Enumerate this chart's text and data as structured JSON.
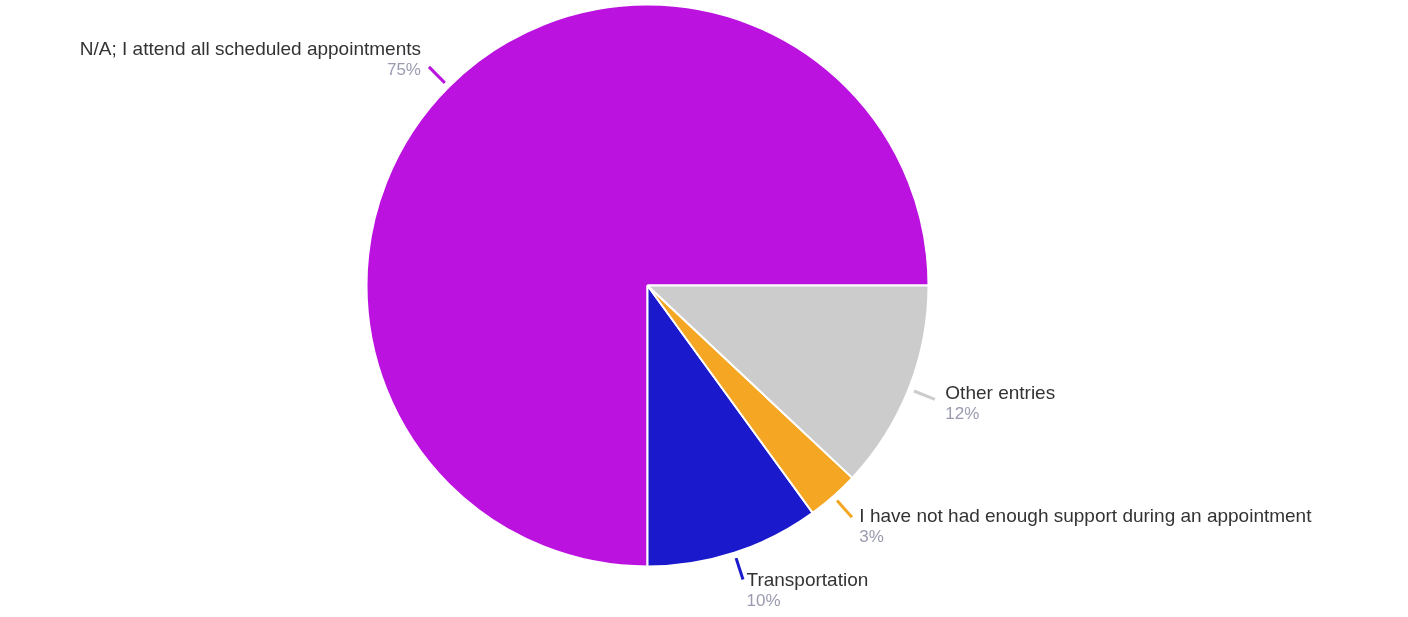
{
  "chart_data": {
    "type": "pie",
    "categories": [
      "N/A; I attend all scheduled appointments",
      "Transportation",
      "I have not had enough support during an appointment",
      "Other entries"
    ],
    "values": [
      75,
      10,
      3,
      12
    ],
    "colors": [
      "#bb12e0",
      "#1a19cc",
      "#f5a623",
      "#cccccc"
    ],
    "value_labels": [
      "75%",
      "10%",
      "3%",
      "12%"
    ]
  }
}
